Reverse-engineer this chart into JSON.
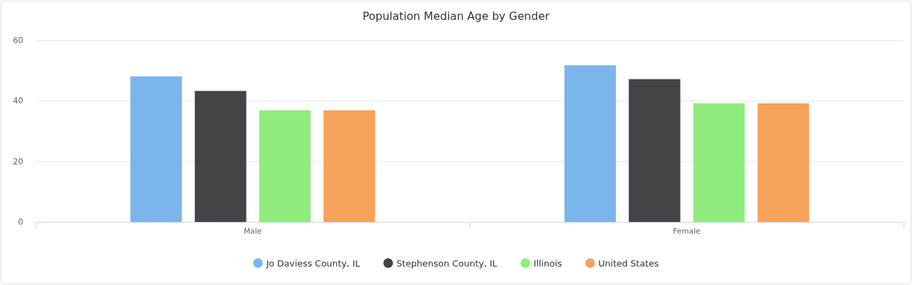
{
  "chart_data": {
    "type": "bar",
    "title": "Population Median Age by Gender",
    "categories": [
      "Male",
      "Female"
    ],
    "series": [
      {
        "name": "Jo Daviess County, IL",
        "color": "#7cb5ec",
        "values": [
          48.1,
          51.8
        ]
      },
      {
        "name": "Stephenson County, IL",
        "color": "#434348",
        "values": [
          43.3,
          47.2
        ]
      },
      {
        "name": "Illinois",
        "color": "#90ed7d",
        "values": [
          36.9,
          39.2
        ]
      },
      {
        "name": "United States",
        "color": "#f7a35c",
        "values": [
          36.9,
          39.2
        ]
      }
    ],
    "ylim": [
      0,
      60
    ],
    "yticks": [
      0,
      20,
      40,
      60
    ],
    "grid": "y",
    "legend": "bottom"
  }
}
